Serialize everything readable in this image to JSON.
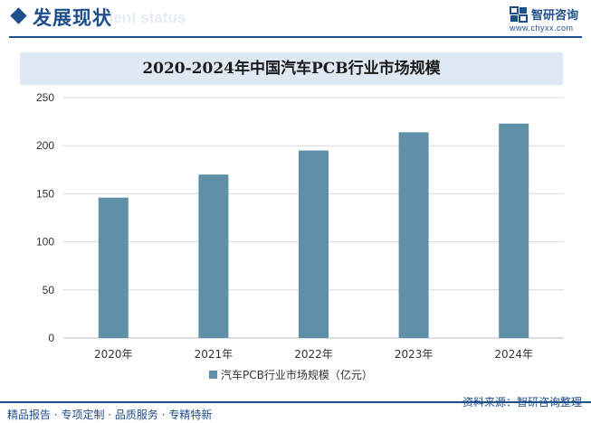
{
  "header": {
    "section_title": "发展现状",
    "section_subtitle_ghost": "ment status",
    "brand_name": "智研咨询",
    "brand_url": "www.chyxx.com"
  },
  "colors": {
    "brand": "#1f4e8c",
    "bar": "#5f90a8",
    "title_bg": "#dfe9f4",
    "grid": "#d9d9d9"
  },
  "chart_data": {
    "type": "bar",
    "title": "2020-2024年中国汽车PCB行业市场规模",
    "categories": [
      "2020年",
      "2021年",
      "2022年",
      "2023年",
      "2024年"
    ],
    "series": [
      {
        "name": "汽车PCB行业市场规模（亿元）",
        "values": [
          146,
          170,
          195,
          214,
          223
        ]
      }
    ],
    "ylim": [
      0,
      250
    ],
    "yticks": [
      0,
      50,
      100,
      150,
      200,
      250
    ],
    "grid": true,
    "legend": "bottom"
  },
  "footer": {
    "left": "精品报告 · 专项定制 · 品质服务 · 专精特新",
    "source": "资料来源：智研咨询整理"
  }
}
